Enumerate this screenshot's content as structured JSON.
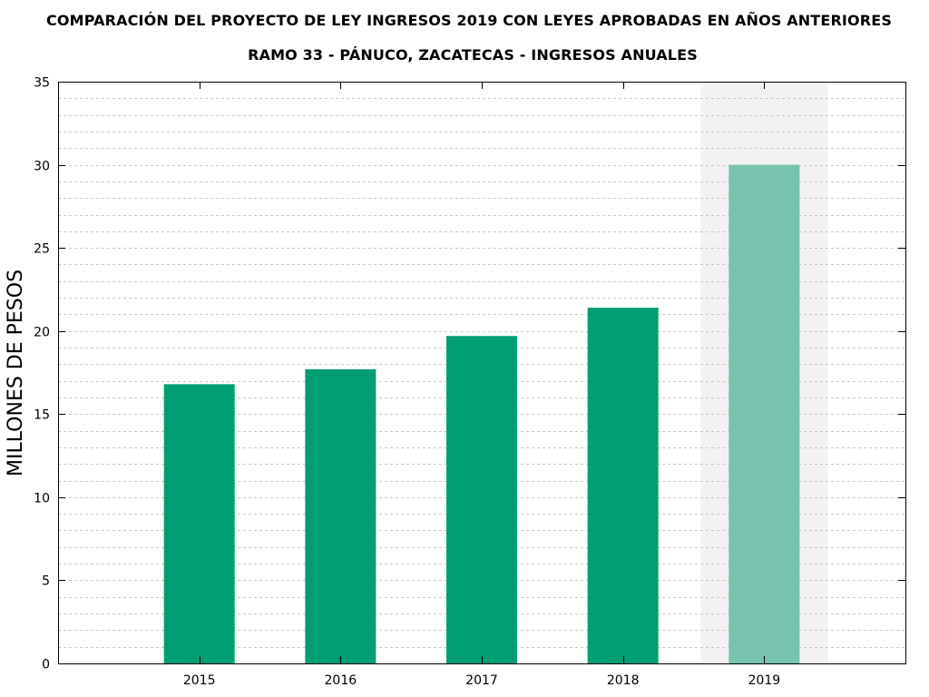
{
  "header": {
    "title": "COMPARACIÓN DEL PROYECTO DE LEY INGRESOS 2019 CON LEYES APROBADAS EN AÑOS ANTERIORES",
    "subtitle": "RAMO 33 - PÁNUCO, ZACATECAS - INGRESOS ANUALES"
  },
  "colors": {
    "bar": "#009E73",
    "bar_highlight": "#77C3AF",
    "highlight_band": "#F2F2F2",
    "grid": "#C8C8C8",
    "axis": "#000000"
  },
  "chart_data": {
    "type": "bar",
    "title": "COMPARACIÓN DEL PROYECTO DE LEY INGRESOS 2019 CON LEYES APROBADAS EN AÑOS ANTERIORES",
    "subtitle": "RAMO 33 - PÁNUCO, ZACATECAS - INGRESOS ANUALES",
    "xlabel": "",
    "ylabel": "MILLONES DE PESOS",
    "categories": [
      "2015",
      "2016",
      "2017",
      "2018",
      "2019"
    ],
    "values": [
      16.8,
      17.7,
      19.7,
      21.4,
      30.0
    ],
    "highlight_category": "2019",
    "ylim": [
      0,
      35
    ],
    "yticks": [
      "0",
      "5",
      "10",
      "15",
      "20",
      "25",
      "30",
      "35"
    ],
    "grid": true,
    "legend": false
  }
}
